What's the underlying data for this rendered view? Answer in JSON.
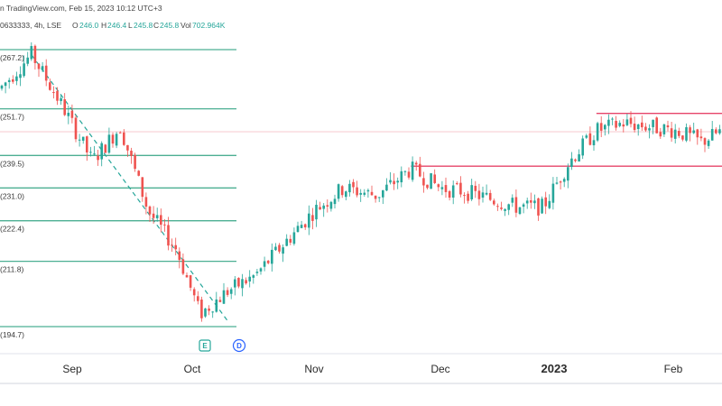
{
  "header": {
    "source_text": "n TradingView.com, Feb 15, 2023 10:12 UTC+3",
    "symbol_text": "0633333, 4h, LSE",
    "o_label": "O",
    "o_value": "246.0",
    "h_label": "H",
    "h_value": "246.4",
    "l_label": "L",
    "l_value": "245.8",
    "c_label": "C",
    "c_value": "245.8",
    "vol_label": "Vol",
    "vol_value": "702.964K"
  },
  "markers": {
    "earnings": "E",
    "dividend": "D"
  },
  "colors": {
    "up": "#26a69a",
    "down": "#ef5350",
    "fib": "#4caf93",
    "resistance": "#e6456a",
    "trend": "#26a69a",
    "marker_blue": "#2962ff",
    "marker_green": "#26a69a"
  },
  "chart_data": {
    "type": "candlestick",
    "x_tick_labels": [
      "Sep",
      "Oct",
      "Nov",
      "Dec",
      "2023",
      "Feb"
    ],
    "fib_levels": [
      {
        "label": "(267.2)",
        "value": 267.2
      },
      {
        "label": "(251.7)",
        "value": 251.7
      },
      {
        "label": "(239.5)",
        "value": 239.5
      },
      {
        "label": "(231.0)",
        "value": 231.0
      },
      {
        "label": "(222.4)",
        "value": 222.4
      },
      {
        "label": "(211.8)",
        "value": 211.8
      },
      {
        "label": "(194.7)",
        "value": 194.7
      }
    ],
    "resistance_levels": [
      {
        "value": 236.7,
        "start": "2022-11-24",
        "end": "2023-02-15"
      },
      {
        "value": 250.5,
        "start": "2023-01-12",
        "end": "2023-02-15"
      }
    ],
    "trend_line": {
      "start": {
        "date": "2022-08-23",
        "value": 265.8
      },
      "end": {
        "date": "2022-10-10",
        "value": 196.2
      }
    },
    "ylim": [
      188,
      275
    ],
    "series_summary": [
      {
        "date": "2022-08-16",
        "close": 257
      },
      {
        "date": "2022-08-23",
        "close": 266
      },
      {
        "date": "2022-08-30",
        "close": 252
      },
      {
        "date": "2022-09-06",
        "close": 238
      },
      {
        "date": "2022-09-13",
        "close": 247
      },
      {
        "date": "2022-09-20",
        "close": 225
      },
      {
        "date": "2022-09-27",
        "close": 215
      },
      {
        "date": "2022-10-03",
        "close": 198
      },
      {
        "date": "2022-10-10",
        "close": 204
      },
      {
        "date": "2022-10-17",
        "close": 208
      },
      {
        "date": "2022-10-24",
        "close": 216
      },
      {
        "date": "2022-11-01",
        "close": 225
      },
      {
        "date": "2022-11-08",
        "close": 231
      },
      {
        "date": "2022-11-16",
        "close": 229
      },
      {
        "date": "2022-11-24",
        "close": 236
      },
      {
        "date": "2022-12-01",
        "close": 231
      },
      {
        "date": "2022-12-08",
        "close": 230
      },
      {
        "date": "2022-12-15",
        "close": 228
      },
      {
        "date": "2022-12-22",
        "close": 226
      },
      {
        "date": "2022-12-29",
        "close": 226
      },
      {
        "date": "2023-01-05",
        "close": 238
      },
      {
        "date": "2023-01-12",
        "close": 246
      },
      {
        "date": "2023-01-19",
        "close": 248
      },
      {
        "date": "2023-01-26",
        "close": 247
      },
      {
        "date": "2023-02-02",
        "close": 246
      },
      {
        "date": "2023-02-09",
        "close": 243
      },
      {
        "date": "2023-02-15",
        "close": 246
      }
    ]
  }
}
